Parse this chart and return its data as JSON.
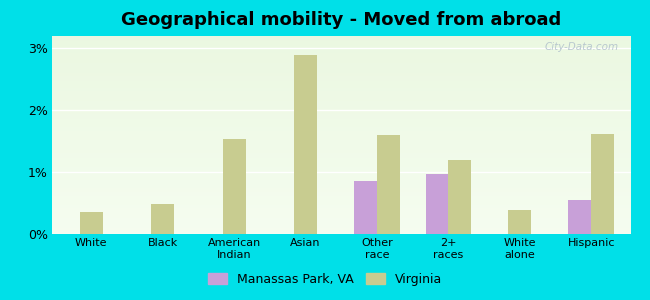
{
  "title": "Geographical mobility - Moved from abroad",
  "categories": [
    "White",
    "Black",
    "American\nIndian",
    "Asian",
    "Other\nrace",
    "2+\nraces",
    "White\nalone",
    "Hispanic"
  ],
  "manassas_values": [
    0,
    0,
    0,
    0,
    0.85,
    0.97,
    0,
    0.55
  ],
  "virginia_values": [
    0.35,
    0.48,
    1.53,
    2.9,
    1.6,
    1.2,
    0.38,
    1.62
  ],
  "manassas_color": "#c8a0d8",
  "virginia_color": "#c8cc90",
  "outer_background": "#00e0e8",
  "ylim": [
    0,
    3.2
  ],
  "yticks": [
    0,
    1,
    2,
    3
  ],
  "ytick_labels": [
    "0%",
    "1%",
    "2%",
    "3%"
  ],
  "legend_manassas": "Manassas Park, VA",
  "legend_virginia": "Virginia",
  "bar_width": 0.32,
  "title_fontsize": 13,
  "watermark": "City-Data.com"
}
